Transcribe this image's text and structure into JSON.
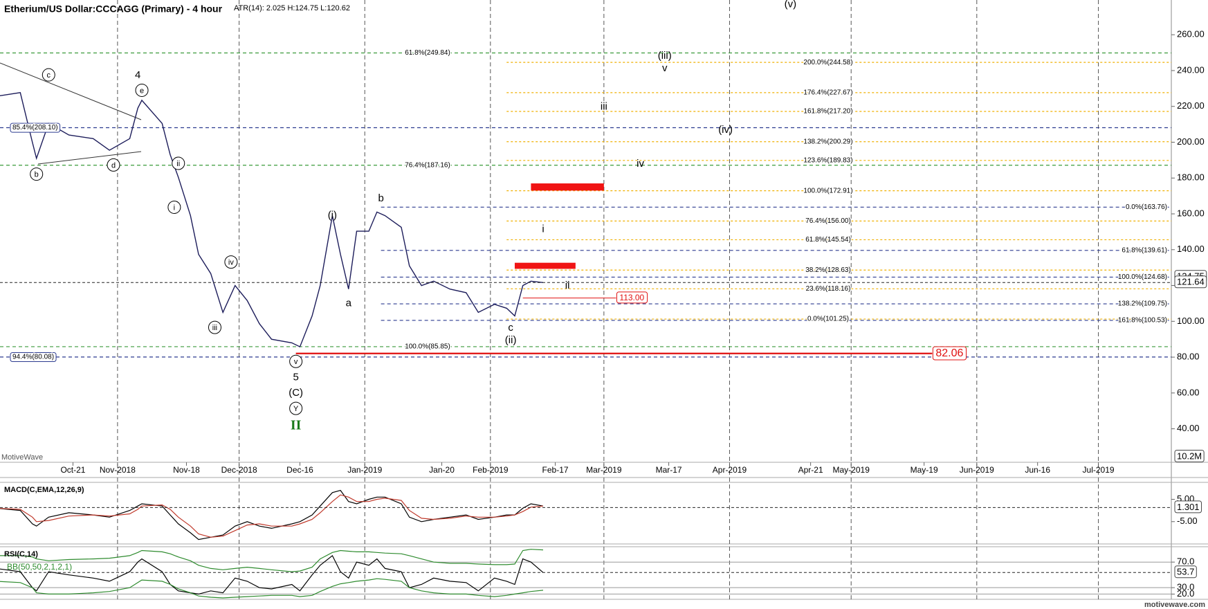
{
  "header": {
    "title": "Etherium/US Dollar:CCCAGG (Primary) - 4 hour",
    "info": "ATR(14): 2.025 H:124.75 L:120.62"
  },
  "chart_data": [
    {
      "type": "line",
      "x": [
        "2018-10-02",
        "2018-10-08",
        "2018-10-11",
        "2018-10-12",
        "2018-10-15",
        "2018-10-20",
        "2018-10-26",
        "2018-10-30",
        "2018-11-04",
        "2018-11-06",
        "2018-11-07",
        "2018-11-12",
        "2018-11-14",
        "2018-11-16",
        "2018-11-19",
        "2018-11-21",
        "2018-11-24",
        "2018-11-27",
        "2018-11-30",
        "2018-12-03",
        "2018-12-06",
        "2018-12-09",
        "2018-12-14",
        "2018-12-16",
        "2018-12-19",
        "2018-12-21",
        "2018-12-24",
        "2018-12-26",
        "2018-12-28",
        "2018-12-30",
        "2019-01-02",
        "2019-01-04",
        "2019-01-06",
        "2019-01-10",
        "2019-01-12",
        "2019-01-15",
        "2019-01-18",
        "2019-01-22",
        "2019-01-26",
        "2019-01-29",
        "2019-02-02",
        "2019-02-05",
        "2019-02-07",
        "2019-02-09",
        "2019-02-11",
        "2019-02-14"
      ],
      "series": [
        {
          "color": "#1c1c5a",
          "values": [
            225.6,
            227.7,
            199.8,
            191,
            210.5,
            204,
            202,
            195.5,
            202,
            219,
            223.4,
            210.5,
            193,
            180.4,
            159,
            137.4,
            126.7,
            105,
            120,
            111.6,
            98.7,
            90,
            88,
            85.8,
            103,
            120,
            159,
            137.4,
            118,
            150.3,
            150.3,
            161,
            159,
            152.5,
            131,
            120,
            122.4,
            118,
            116,
            105,
            109.5,
            107.3,
            103,
            120,
            122.4,
            121.64
          ]
        }
      ],
      "xlim": [
        "2018-10-03",
        "2019-07-19"
      ],
      "xticks": [
        {
          "value": "2018-10-21",
          "label": "Oct-21"
        },
        {
          "value": "2018-11-01",
          "label": "Nov-2018"
        },
        {
          "value": "2018-11-18",
          "label": "Nov-18"
        },
        {
          "value": "2018-12-01",
          "label": "Dec-2018"
        },
        {
          "value": "2018-12-16",
          "label": "Dec-16"
        },
        {
          "value": "2019-01-01",
          "label": "Jan-2019"
        },
        {
          "value": "2019-01-20",
          "label": "Jan-20"
        },
        {
          "value": "2019-02-01",
          "label": "Feb-2019"
        },
        {
          "value": "2019-02-17",
          "label": "Feb-17"
        },
        {
          "value": "2019-03-01",
          "label": "Mar-2019"
        },
        {
          "value": "2019-03-17",
          "label": "Mar-17"
        },
        {
          "value": "2019-04-01",
          "label": "Apr-2019"
        },
        {
          "value": "2019-04-21",
          "label": "Apr-21"
        },
        {
          "value": "2019-05-01",
          "label": "May-2019"
        },
        {
          "value": "2019-05-19",
          "label": "May-19"
        },
        {
          "value": "2019-06-01",
          "label": "Jun-2019"
        },
        {
          "value": "2019-06-16",
          "label": "Jun-16"
        },
        {
          "value": "2019-07-01",
          "label": "Jul-2019"
        }
      ],
      "ylim": [
        21.3,
        279.4
      ],
      "yticks": [
        {
          "value": 40,
          "label": "40.00"
        },
        {
          "value": 60,
          "label": "60.00"
        },
        {
          "value": 80,
          "label": "80.00"
        },
        {
          "value": 100,
          "label": "100.00"
        },
        {
          "value": 120,
          "label": "120.00"
        },
        {
          "value": 140,
          "label": "140.00"
        },
        {
          "value": 160,
          "label": "160.00"
        },
        {
          "value": 180,
          "label": "180.00"
        },
        {
          "value": 200,
          "label": "200.00"
        },
        {
          "value": 220,
          "label": "220.00"
        },
        {
          "value": 240,
          "label": "240.00"
        },
        {
          "value": 260,
          "label": "260.00"
        }
      ],
      "xgrid": true,
      "level_groups": [
        {
          "color": "#3a9a3a",
          "from": "2018-10-03",
          "to": "2019-07-19",
          "levels": [
            {
              "label": "61.8%(249.84)",
              "value": 249.84
            },
            {
              "label": "76.4%(187.16)",
              "value": 187.16
            },
            {
              "label": "100.0%(85.85)",
              "value": 85.85
            }
          ]
        },
        {
          "color": "#2b3a8f",
          "from": "2018-10-03",
          "to": "2019-07-19",
          "boxed": true,
          "levels": [
            {
              "label": "85.4%(208.10)",
              "value": 208.1
            },
            {
              "label": "94.4%(80.08)",
              "value": 80.08
            }
          ]
        },
        {
          "color": "#2b3a8f",
          "from": "2019-01-05",
          "to": "2019-07-19",
          "levels": [
            {
              "label": "0.0%(163.76)",
              "value": 163.76
            },
            {
              "label": "61.8%(139.61)",
              "value": 139.61
            },
            {
              "label": "100.0%(124.68)",
              "value": 124.68
            },
            {
              "label": "138.2%(109.75)",
              "value": 109.75
            },
            {
              "label": "161.8%(100.53)",
              "value": 100.53
            }
          ]
        },
        {
          "color": "#f0b000",
          "from": "2019-02-05",
          "to": "2019-07-19",
          "levels": [
            {
              "label": "200.0%(244.58)",
              "value": 244.58
            },
            {
              "label": "176.4%(227.67)",
              "value": 227.67
            },
            {
              "label": "161.8%(217.20)",
              "value": 217.2
            },
            {
              "label": "138.2%(200.29)",
              "value": 200.29
            },
            {
              "label": "123.6%(189.83)",
              "value": 189.83
            },
            {
              "label": "100.0%(172.91)",
              "value": 172.91
            },
            {
              "label": "76.4%(156.00)",
              "value": 156.0
            },
            {
              "label": "61.8%(145.54)",
              "value": 145.54
            },
            {
              "label": "38.2%(128.63)",
              "value": 128.63
            },
            {
              "label": "23.6%(118.16)",
              "value": 118.16
            },
            {
              "label": "0.0%(101.25)",
              "value": 101.25
            }
          ]
        }
      ],
      "red_lines": [
        {
          "value": 82.06,
          "from": "2018-12-15",
          "to": "2019-05-21"
        },
        {
          "value": 113,
          "label": "113.00",
          "from": "2019-02-09",
          "to": "2019-03-04"
        }
      ],
      "targets": [
        {
          "values": [
            173,
            177
          ],
          "from": "2019-02-11",
          "to": "2019-03-01"
        },
        {
          "values": [
            129.3,
            132.7
          ],
          "from": "2019-02-07",
          "to": "2019-02-22"
        }
      ],
      "annotations": [
        {
          "text": "(v)",
          "x": "2019-04-16",
          "y": 277.2
        },
        {
          "text": "c",
          "x": "2018-10-15",
          "y": 237.6,
          "circled": true
        },
        {
          "text": "4",
          "x": "2018-11-06",
          "y": 237.6
        },
        {
          "text": "e",
          "x": "2018-11-07",
          "y": 229,
          "circled": true
        },
        {
          "text": "b",
          "x": "2018-10-12",
          "y": 182.2,
          "circled": true
        },
        {
          "text": "d",
          "x": "2018-10-31",
          "y": 187.3,
          "circled": true
        },
        {
          "text": "ii",
          "x": "2018-11-16",
          "y": 188.2,
          "circled": true
        },
        {
          "text": "i",
          "x": "2018-11-15",
          "y": 163.7,
          "circled": true
        },
        {
          "text": "iv",
          "x": "2018-11-29",
          "y": 133.1,
          "circled": true
        },
        {
          "text": "iii",
          "x": "2018-11-25",
          "y": 96.6,
          "circled": true
        },
        {
          "text": "v",
          "x": "2018-12-15",
          "y": 77.6,
          "circled": true
        },
        {
          "text": "5",
          "x": "2018-12-15",
          "y": 69
        },
        {
          "text": "(C)",
          "x": "2018-12-15",
          "y": 60.4
        },
        {
          "text": "Y",
          "x": "2018-12-15",
          "y": 51.4,
          "circled": true
        },
        {
          "text": "II",
          "x": "2018-12-15",
          "y": 41.9,
          "color": "#1a7a1a"
        },
        {
          "text": "(i)",
          "x": "2018-12-24",
          "y": 159.4
        },
        {
          "text": "a",
          "x": "2018-12-28",
          "y": 110.3
        },
        {
          "text": "b",
          "x": "2019-01-05",
          "y": 168.8
        },
        {
          "text": "c",
          "x": "2019-02-06",
          "y": 96.6
        },
        {
          "text": "(ii)",
          "x": "2019-02-06",
          "y": 89.7
        },
        {
          "text": "(iii)",
          "x": "2019-03-16",
          "y": 248.4
        },
        {
          "text": "v",
          "x": "2019-03-16",
          "y": 241.5
        },
        {
          "text": "iii",
          "x": "2019-03-01",
          "y": 220
        },
        {
          "text": "(iv)",
          "x": "2019-03-31",
          "y": 207.1
        },
        {
          "text": "iv",
          "x": "2019-03-10",
          "y": 188.2
        },
        {
          "text": "i",
          "x": "2019-02-14",
          "y": 151.6
        },
        {
          "text": "ii",
          "x": "2019-02-20",
          "y": 120.2
        }
      ],
      "high_price": 124.75,
      "last_price": 121.64,
      "volume_label": "10.2M",
      "watermark": "MotiveWave"
    },
    {
      "type": "line",
      "title": "MACD(C,EMA,12,26,9)",
      "series": [
        {
          "color": "#000000",
          "values": [
            1,
            0,
            -6,
            -7,
            -3,
            -1,
            -2,
            -3,
            0,
            2,
            3,
            2,
            -2,
            -6,
            -10,
            -13,
            -12,
            -11,
            -7,
            -5,
            -7,
            -8,
            -6,
            -5,
            -2,
            2,
            8,
            9,
            4,
            3,
            5,
            6,
            6,
            3,
            -3,
            -5,
            -4,
            -3,
            -2,
            -4,
            -3,
            -2,
            -2,
            1,
            3,
            2
          ]
        },
        {
          "color": "#c0392b",
          "values": [
            1,
            0.5,
            -3,
            -5,
            -4.5,
            -2.5,
            -2,
            -2.5,
            -1.5,
            0.5,
            2,
            2.5,
            0.5,
            -3,
            -7,
            -10.5,
            -12,
            -11.5,
            -9,
            -6.5,
            -6,
            -7,
            -7,
            -6,
            -4,
            -1,
            4,
            7,
            6,
            4,
            4,
            5,
            5.5,
            4.5,
            0,
            -3.5,
            -4,
            -3.5,
            -2.5,
            -3,
            -3,
            -2.5,
            -2,
            -0.5,
            1.5,
            2
          ]
        }
      ],
      "ylim": [
        -15,
        12.6
      ],
      "yticks": [
        {
          "value": 5,
          "label": "5.00"
        },
        {
          "value": -5,
          "label": "-5.00"
        }
      ],
      "last_value": 1.301
    },
    {
      "type": "line",
      "title": "RSI(C,14)",
      "subtitle": "BB(50,50,2,1,2,1)",
      "series": [
        {
          "color": "#000000",
          "values": [
            60,
            55,
            30,
            25,
            55,
            50,
            45,
            40,
            55,
            70,
            75,
            55,
            35,
            25,
            22,
            20,
            25,
            22,
            45,
            40,
            30,
            28,
            35,
            25,
            50,
            65,
            80,
            55,
            45,
            70,
            65,
            75,
            60,
            55,
            30,
            35,
            45,
            40,
            38,
            25,
            45,
            40,
            35,
            75,
            70,
            53.7
          ]
        },
        {
          "color": "#2e8b2e",
          "values": [
            80,
            80,
            78,
            75,
            72,
            74,
            75,
            76,
            80,
            85,
            88,
            86,
            83,
            78,
            72,
            65,
            60,
            58,
            60,
            62,
            60,
            58,
            55,
            56,
            62,
            75,
            85,
            88,
            87,
            86,
            86,
            85,
            84,
            83,
            80,
            75,
            70,
            68,
            68,
            67,
            66,
            66,
            67,
            88,
            90,
            89
          ]
        },
        {
          "color": "#2e8b2e",
          "values": [
            40,
            38,
            30,
            22,
            20,
            20,
            22,
            24,
            30,
            38,
            42,
            40,
            35,
            28,
            22,
            17,
            15,
            14,
            15,
            16,
            17,
            18,
            18,
            16,
            18,
            24,
            32,
            36,
            38,
            40,
            42,
            44,
            43,
            40,
            30,
            25,
            22,
            20,
            20,
            18,
            16,
            18,
            20,
            22,
            24,
            26
          ]
        }
      ],
      "ylim": [
        11.8,
        94
      ],
      "yticks": [
        {
          "value": 70,
          "label": "70.0"
        },
        {
          "value": 30,
          "label": "30.0"
        },
        {
          "value": 20,
          "label": "20.0"
        }
      ],
      "ygrid": true,
      "last_value": 53.7
    }
  ],
  "footer": "motivewave.com"
}
